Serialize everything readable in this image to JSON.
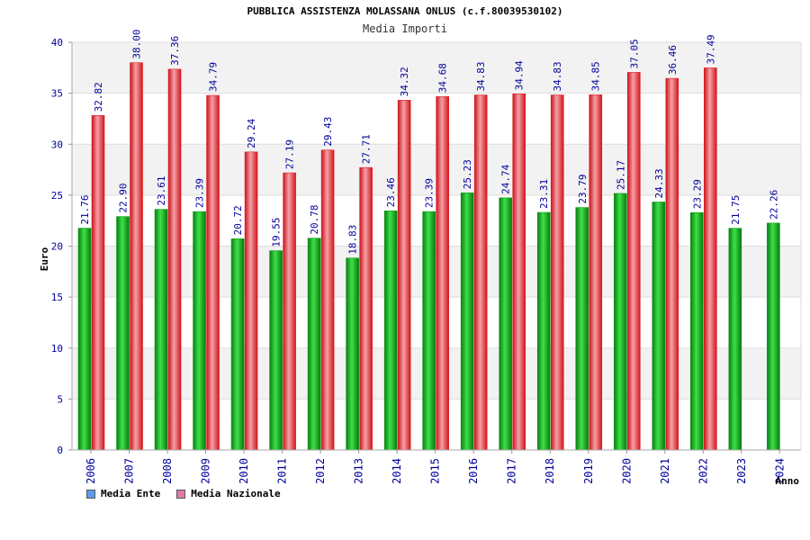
{
  "colors": {
    "ente": "#0a9a14",
    "nazionale": "#e01c24",
    "legend_ente": "#5b9bf0",
    "legend_nazionale": "#e07aa8",
    "axis_text": "#00009a",
    "band": "#f2f2f2"
  },
  "chart_data": {
    "type": "bar",
    "title": "PUBBLICA ASSISTENZA MOLASSANA ONLUS (c.f.80039530102)",
    "subtitle": "Media Importi",
    "xlabel": "Anno",
    "ylabel": "Euro",
    "ylim": [
      0,
      40
    ],
    "yticks": [
      "0",
      "5",
      "10",
      "15",
      "20",
      "25",
      "30",
      "35",
      "40"
    ],
    "categories": [
      "2006",
      "2007",
      "2008",
      "2009",
      "2010",
      "2011",
      "2012",
      "2013",
      "2014",
      "2015",
      "2016",
      "2017",
      "2018",
      "2019",
      "2020",
      "2021",
      "2022",
      "2023",
      "2024"
    ],
    "series": [
      {
        "name": "Media Ente",
        "values": [
          21.76,
          22.9,
          23.61,
          23.39,
          20.72,
          19.55,
          20.78,
          18.83,
          23.46,
          23.39,
          25.23,
          24.74,
          23.31,
          23.79,
          25.17,
          24.33,
          23.29,
          21.75,
          22.26
        ],
        "labels": [
          "21.76",
          "22.90",
          "23.61",
          "23.39",
          "20.72",
          "19.55",
          "20.78",
          "18.83",
          "23.46",
          "23.39",
          "25.23",
          "24.74",
          "23.31",
          "23.79",
          "25.17",
          "24.33",
          "23.29",
          "21.75",
          "22.26"
        ]
      },
      {
        "name": "Media Nazionale",
        "values": [
          32.82,
          38.0,
          37.36,
          34.79,
          29.24,
          27.19,
          29.43,
          27.71,
          34.32,
          34.68,
          34.83,
          34.94,
          34.83,
          34.85,
          37.05,
          36.46,
          37.49,
          null,
          null
        ],
        "labels": [
          "32.82",
          "38.00",
          "37.36",
          "34.79",
          "29.24",
          "27.19",
          "29.43",
          "27.71",
          "34.32",
          "34.68",
          "34.83",
          "34.94",
          "34.83",
          "34.85",
          "37.05",
          "36.46",
          "37.49",
          "",
          ""
        ]
      }
    ],
    "legend": [
      "Media Ente",
      "Media Nazionale"
    ]
  }
}
